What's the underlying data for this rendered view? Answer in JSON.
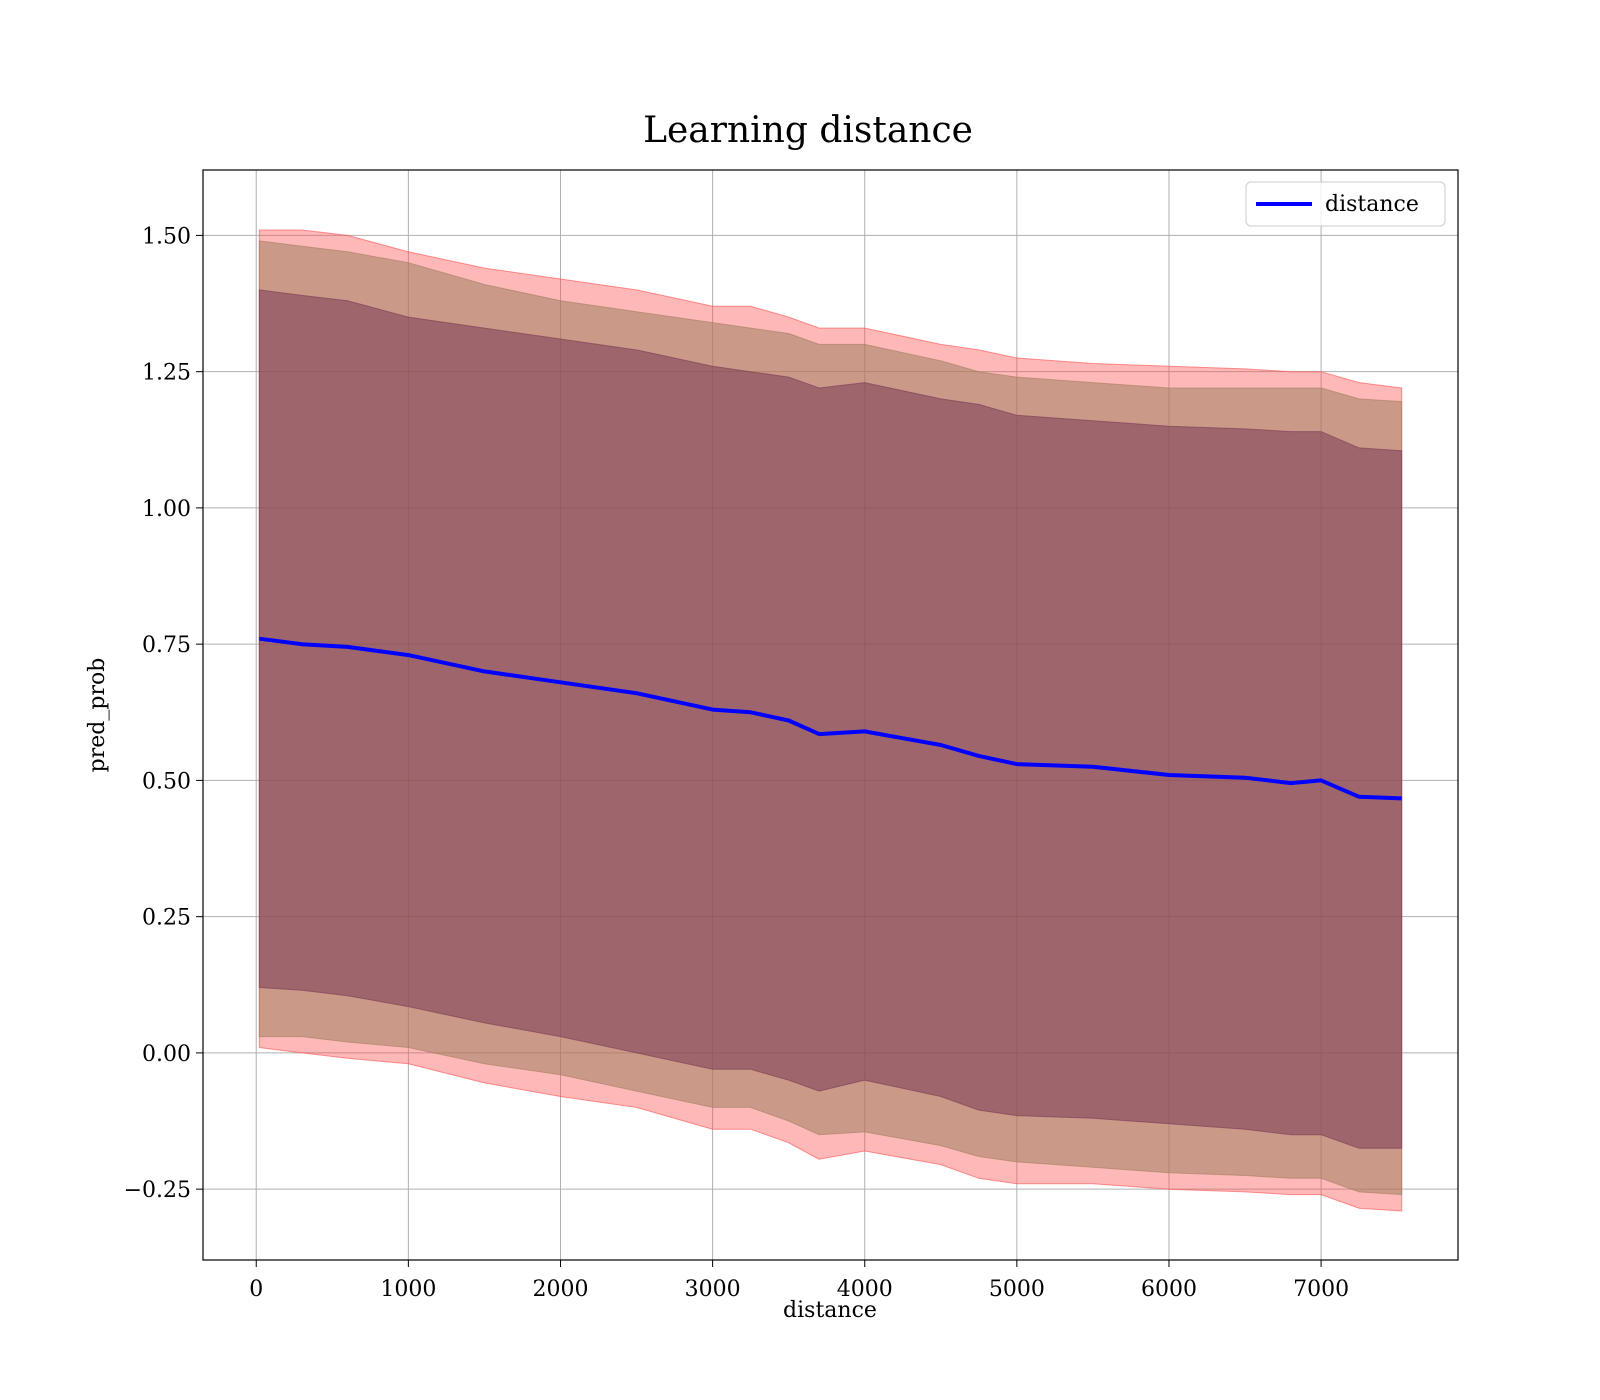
{
  "chart_data": {
    "type": "line",
    "title": "Learning distance",
    "xlabel": "distance",
    "ylabel": "pred_prob",
    "xlim": [
      -350,
      7900
    ],
    "ylim": [
      -0.38,
      1.62
    ],
    "xticks": [
      0,
      1000,
      2000,
      3000,
      4000,
      5000,
      6000,
      7000
    ],
    "xtick_labels": [
      "0",
      "1000",
      "2000",
      "3000",
      "4000",
      "5000",
      "6000",
      "7000"
    ],
    "yticks": [
      -0.25,
      0.0,
      0.25,
      0.5,
      0.75,
      1.0,
      1.25,
      1.5
    ],
    "ytick_labels": [
      "−0.25",
      "0.00",
      "0.25",
      "0.50",
      "0.75",
      "1.00",
      "1.25",
      "1.50"
    ],
    "grid": true,
    "legend": {
      "position": "top-right",
      "entries": [
        "distance"
      ]
    },
    "x": [
      20,
      300,
      600,
      1000,
      1500,
      2000,
      2500,
      3000,
      3250,
      3500,
      3700,
      4000,
      4500,
      4750,
      5000,
      5500,
      6000,
      6500,
      6800,
      7000,
      7250,
      7530
    ],
    "series": [
      {
        "name": "distance",
        "color": "#0000ff",
        "values": [
          0.76,
          0.75,
          0.745,
          0.73,
          0.7,
          0.68,
          0.66,
          0.63,
          0.625,
          0.61,
          0.585,
          0.59,
          0.565,
          0.545,
          0.53,
          0.525,
          0.51,
          0.505,
          0.495,
          0.5,
          0.47,
          0.467
        ]
      }
    ],
    "bands": [
      {
        "color": "#ff4d4d",
        "opacity": 0.4,
        "upper": [
          1.51,
          1.51,
          1.5,
          1.47,
          1.44,
          1.42,
          1.4,
          1.37,
          1.37,
          1.35,
          1.33,
          1.33,
          1.3,
          1.29,
          1.275,
          1.265,
          1.26,
          1.255,
          1.25,
          1.25,
          1.23,
          1.22
        ],
        "lower": [
          0.01,
          0.0,
          -0.01,
          -0.02,
          -0.055,
          -0.08,
          -0.1,
          -0.14,
          -0.14,
          -0.165,
          -0.195,
          -0.18,
          -0.205,
          -0.23,
          -0.24,
          -0.24,
          -0.25,
          -0.255,
          -0.26,
          -0.26,
          -0.285,
          -0.29
        ]
      },
      {
        "color": "#a08060",
        "opacity": 0.55,
        "upper": [
          1.49,
          1.48,
          1.47,
          1.45,
          1.41,
          1.38,
          1.36,
          1.34,
          1.33,
          1.32,
          1.3,
          1.3,
          1.27,
          1.25,
          1.24,
          1.23,
          1.22,
          1.22,
          1.22,
          1.22,
          1.2,
          1.195
        ],
        "lower": [
          0.03,
          0.03,
          0.02,
          0.01,
          -0.02,
          -0.04,
          -0.07,
          -0.1,
          -0.1,
          -0.125,
          -0.15,
          -0.145,
          -0.17,
          -0.19,
          -0.2,
          -0.21,
          -0.22,
          -0.225,
          -0.23,
          -0.23,
          -0.255,
          -0.26
        ]
      },
      {
        "color": "#7a3a55",
        "opacity": 0.55,
        "upper": [
          1.4,
          1.39,
          1.38,
          1.35,
          1.33,
          1.31,
          1.29,
          1.26,
          1.25,
          1.24,
          1.22,
          1.23,
          1.2,
          1.19,
          1.17,
          1.16,
          1.15,
          1.145,
          1.14,
          1.14,
          1.11,
          1.105
        ],
        "lower": [
          0.12,
          0.115,
          0.105,
          0.085,
          0.055,
          0.03,
          0.0,
          -0.03,
          -0.03,
          -0.05,
          -0.07,
          -0.05,
          -0.08,
          -0.105,
          -0.115,
          -0.12,
          -0.13,
          -0.14,
          -0.15,
          -0.15,
          -0.175,
          -0.175
        ]
      }
    ]
  }
}
